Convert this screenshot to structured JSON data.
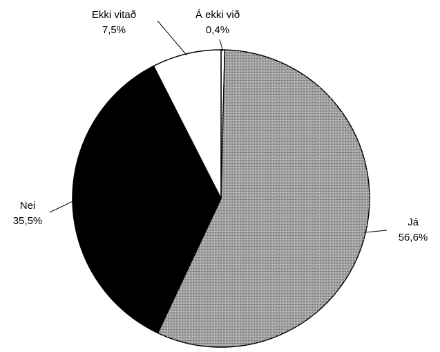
{
  "chart_data": {
    "type": "pie",
    "categories": [
      "Á ekki við",
      "Já",
      "Nei",
      "Ekki vitað"
    ],
    "values": [
      0.4,
      56.6,
      35.5,
      7.5
    ],
    "value_labels": [
      "0,4%",
      "56,6%",
      "35,5%",
      "7,5%"
    ],
    "colors": [
      "#ffffff",
      "#a3a3a3",
      "#000000",
      "#ffffff"
    ]
  }
}
